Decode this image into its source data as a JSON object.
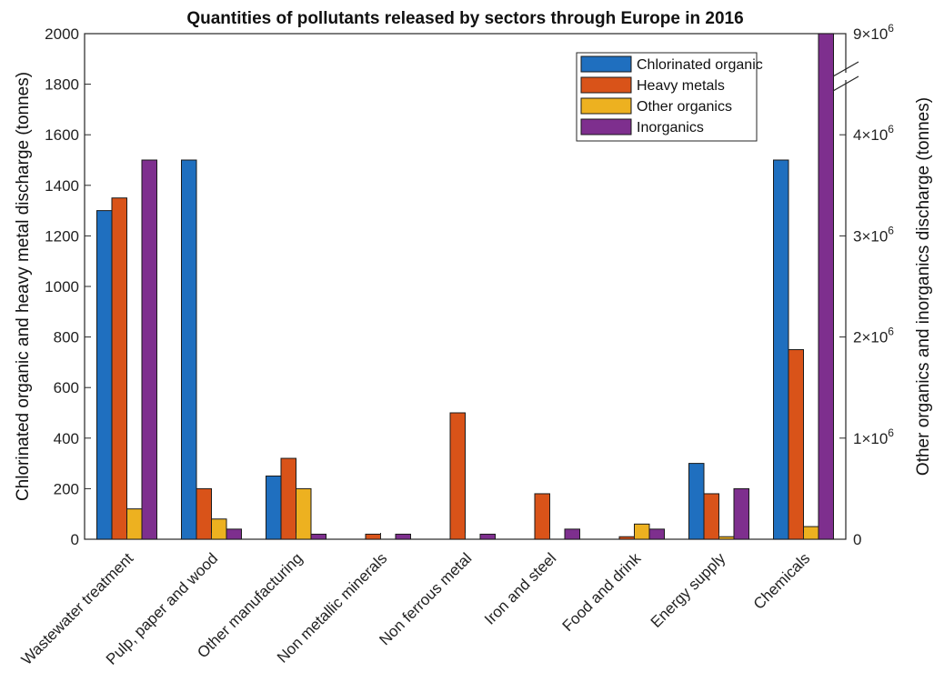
{
  "chart_data": {
    "type": "bar",
    "title": "Quantities of pollutants released by sectors through Europe in 2016",
    "ylabel": "Chlorinated organic and heavy metal discharge (tonnes)",
    "y2label": "Other organics and inorganics discharge (tonnes)",
    "ylim": [
      0,
      2000
    ],
    "y2lim": [
      0,
      9000000
    ],
    "yticks": [
      "0",
      "200",
      "400",
      "600",
      "800",
      "1000",
      "1200",
      "1400",
      "1600",
      "1800",
      "2000"
    ],
    "y2ticks": [
      {
        "base": "0",
        "exp": ""
      },
      {
        "base": "1×10",
        "exp": "6"
      },
      {
        "base": "2×10",
        "exp": "6"
      },
      {
        "base": "3×10",
        "exp": "6"
      },
      {
        "base": "4×10",
        "exp": "6"
      },
      {
        "base": "9×10",
        "exp": "6"
      }
    ],
    "categories": [
      "Wastewater treatment",
      "Pulp, paper and wood",
      "Other manufacturing",
      "Non metallic minerals",
      "Non ferrous metal",
      "Iron and steel",
      "Food and drink",
      "Energy supply",
      "Chemicals"
    ],
    "series": [
      {
        "name": "Chlorinated organic",
        "axis": "left",
        "color": "#1f6fbf",
        "values": [
          1300,
          1500,
          250,
          0,
          0,
          0,
          0,
          300,
          1500
        ]
      },
      {
        "name": "Heavy metals",
        "axis": "left",
        "color": "#d95319",
        "values": [
          1350,
          200,
          320,
          20,
          500,
          180,
          10,
          180,
          750
        ]
      },
      {
        "name": "Other organics",
        "axis": "right",
        "color": "#edb120",
        "values": [
          300000,
          200000,
          500000,
          0,
          0,
          0,
          150000,
          25000,
          125000
        ]
      },
      {
        "name": "Inorganics",
        "axis": "right",
        "color": "#7e2f8e",
        "values": [
          3750000,
          100000,
          50000,
          50000,
          50000,
          100000,
          100000,
          500000,
          9000000
        ]
      }
    ],
    "legend_position": "top-right",
    "grid": false
  }
}
